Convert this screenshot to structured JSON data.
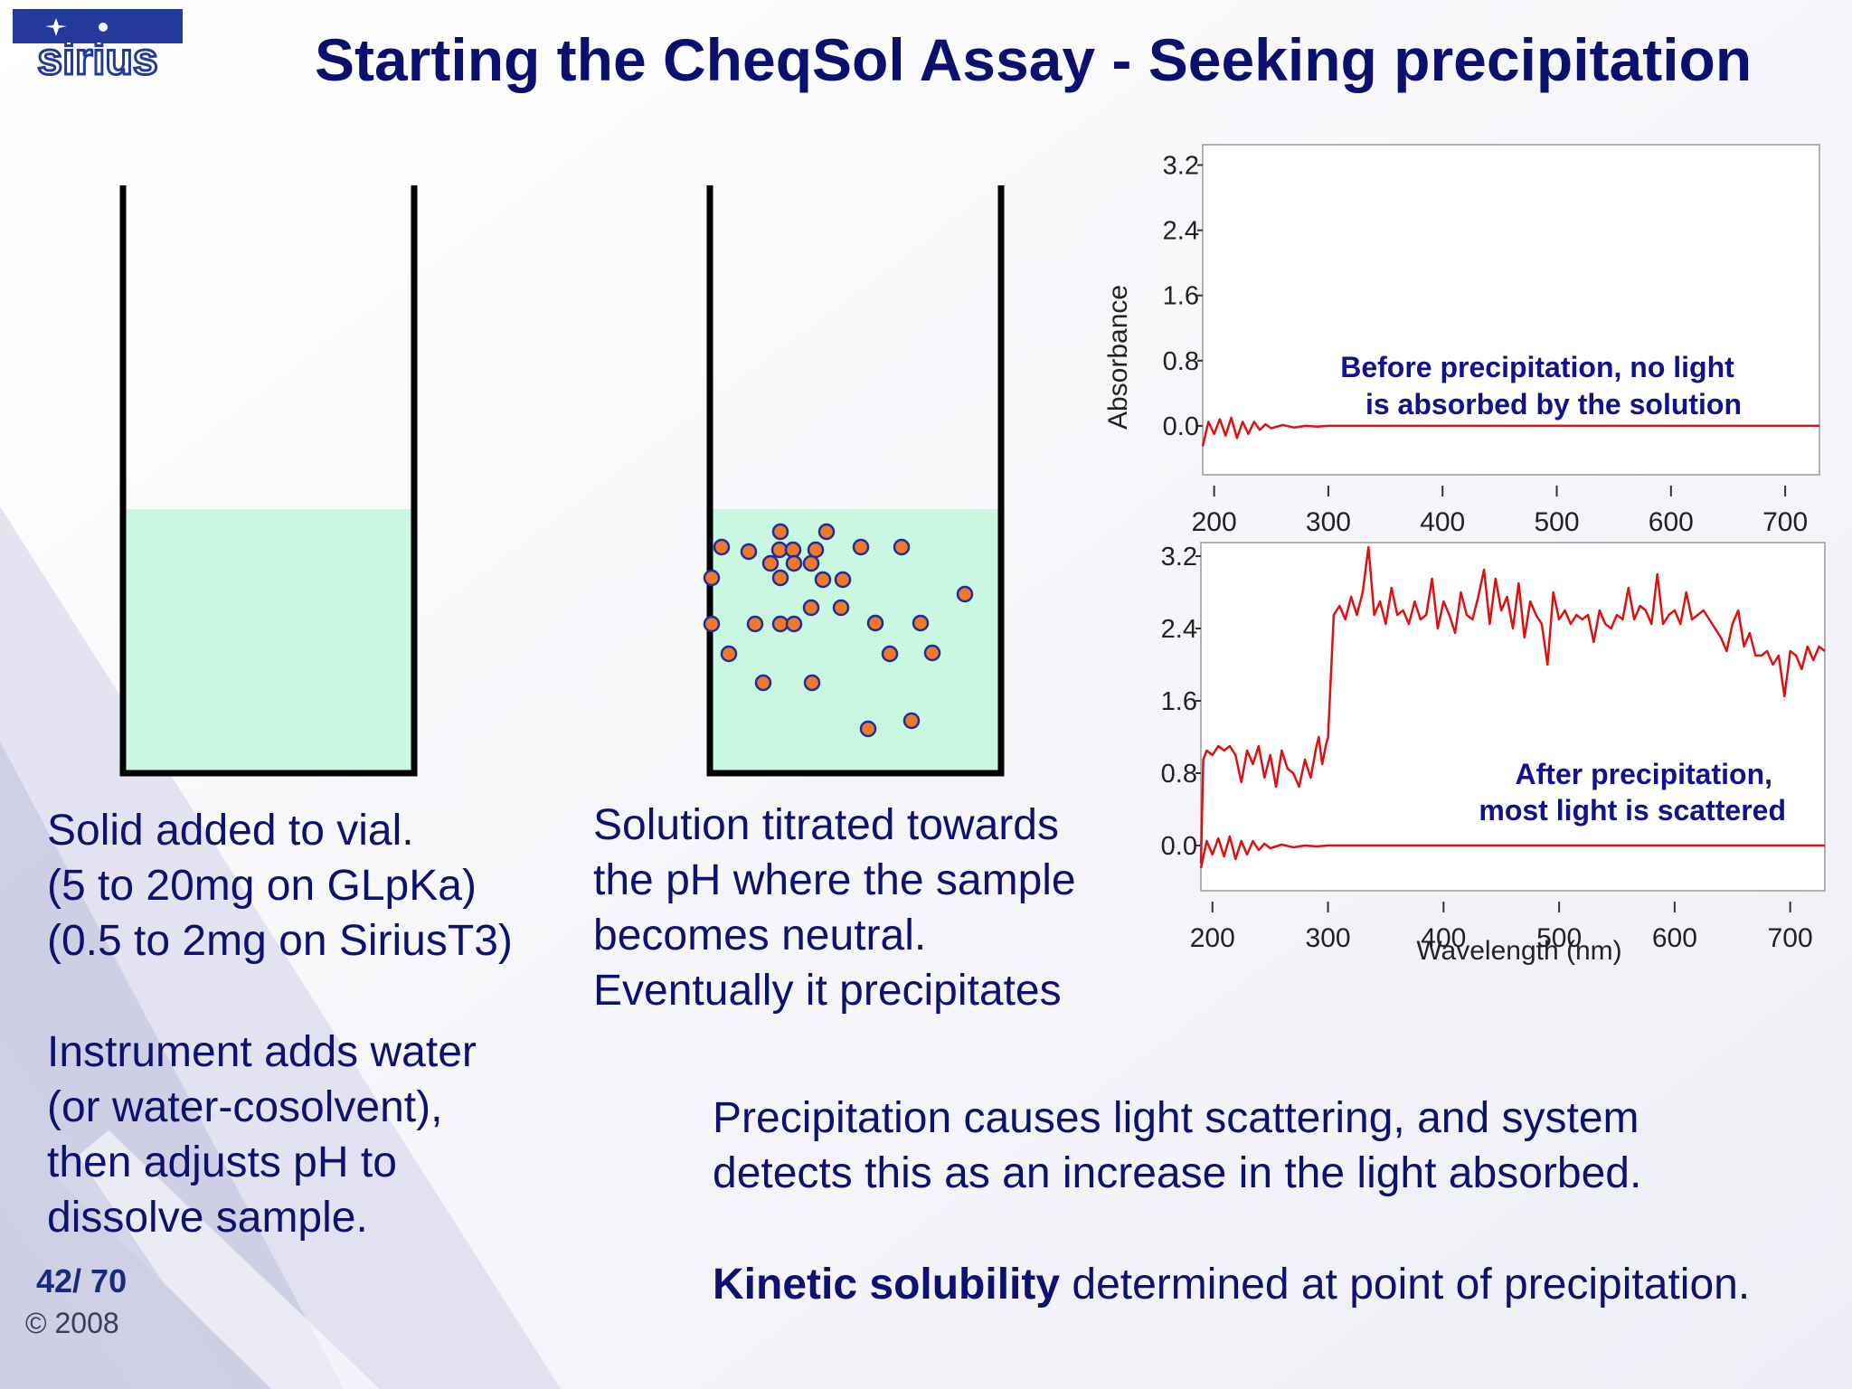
{
  "title": "Starting the CheqSol Assay - Seeking precipitation",
  "logo": {
    "text": "sirius",
    "icon": "star-icon"
  },
  "left_text": {
    "lines": [
      "Solid added to vial.",
      "(5 to 20mg on GLpKa)",
      "(0.5 to 2mg on SiriusT3)"
    ],
    "lines2": [
      "Instrument adds water",
      "(or water-cosolvent),",
      "then adjusts pH to",
      "dissolve sample."
    ]
  },
  "middle_text": {
    "lines": [
      "Solution titrated towards",
      "the pH where the sample",
      "becomes neutral.",
      "Eventually it precipitates"
    ]
  },
  "bottom_text": {
    "line1": "Precipitation causes light scattering, and system",
    "line2": "detects this as an increase in the light absorbed.",
    "kinetic_bold": "Kinetic solubility",
    "kinetic_rest": " determined at point of precipitation."
  },
  "footer": {
    "page": "42/ 70",
    "copyright": "© 2008"
  },
  "colors": {
    "liquid": "#c9f7e2",
    "particle_fill": "#f07828",
    "particle_stroke": "#1c2fa0",
    "trace": "#e01010",
    "title": "#0b0f6e"
  },
  "chart_data": [
    {
      "type": "line",
      "ylabel": "Absorbance",
      "xlabel": "",
      "xlim": [
        190,
        730
      ],
      "ylim": [
        -0.6,
        3.45
      ],
      "yticks": [
        "3.2",
        "2.4",
        "1.6",
        "0.8",
        "0.0"
      ],
      "ytick_values": [
        3.2,
        2.4,
        1.6,
        0.8,
        0.0
      ],
      "xticks": [
        "200",
        "300",
        "400",
        "500",
        "600",
        "700"
      ],
      "xtick_values": [
        200,
        300,
        400,
        500,
        600,
        700
      ],
      "annotation": [
        "Before precipitation, no light",
        "is absorbed by the solution"
      ],
      "series": [
        {
          "x": [
            190,
            195,
            200,
            205,
            210,
            215,
            220,
            225,
            230,
            235,
            240,
            245,
            250,
            260,
            270,
            280,
            290,
            300,
            350,
            400,
            450,
            500,
            550,
            600,
            650,
            700,
            730
          ],
          "y": [
            -0.25,
            0.05,
            -0.1,
            0.08,
            -0.12,
            0.1,
            -0.15,
            0.05,
            -0.1,
            0.05,
            -0.05,
            0.02,
            -0.03,
            0.01,
            -0.02,
            0.0,
            -0.01,
            0.0,
            0.0,
            0.0,
            0.0,
            0.0,
            0.0,
            0.0,
            0.0,
            0.0,
            0.0
          ]
        }
      ]
    },
    {
      "type": "line",
      "ylabel": "",
      "xlabel": "Wavelength (nm)",
      "xlim": [
        190,
        730
      ],
      "ylim": [
        -0.5,
        3.35
      ],
      "yticks": [
        "3.2",
        "2.4",
        "1.6",
        "0.8",
        "0.0"
      ],
      "ytick_values": [
        3.2,
        2.4,
        1.6,
        0.8,
        0.0
      ],
      "xticks": [
        "200",
        "300",
        "400",
        "500",
        "600",
        "700"
      ],
      "xtick_values": [
        200,
        300,
        400,
        500,
        600,
        700
      ],
      "annotation": [
        "After precipitation,",
        "most light is scattered"
      ],
      "series": [
        {
          "x": [
            190,
            195,
            200,
            205,
            210,
            215,
            220,
            225,
            230,
            235,
            240,
            245,
            250,
            260,
            270,
            280,
            290,
            300,
            350,
            400,
            450,
            500,
            550,
            600,
            650,
            700,
            730
          ],
          "y": [
            -0.25,
            0.05,
            -0.1,
            0.08,
            -0.12,
            0.1,
            -0.15,
            0.05,
            -0.1,
            0.05,
            -0.05,
            0.02,
            -0.03,
            0.01,
            -0.02,
            0.0,
            -0.01,
            0.0,
            0.0,
            0.0,
            0.0,
            0.0,
            0.0,
            0.0,
            0.0,
            0.0,
            0.0
          ]
        },
        {
          "x": [
            190,
            192,
            195,
            200,
            205,
            210,
            215,
            220,
            225,
            230,
            235,
            240,
            245,
            250,
            255,
            260,
            265,
            270,
            275,
            280,
            285,
            290,
            292,
            295,
            298,
            300,
            305,
            310,
            315,
            320,
            325,
            330,
            335,
            340,
            345,
            350,
            355,
            360,
            365,
            370,
            375,
            380,
            385,
            390,
            395,
            400,
            405,
            410,
            415,
            420,
            425,
            430,
            435,
            440,
            445,
            450,
            455,
            460,
            465,
            470,
            475,
            480,
            485,
            490,
            495,
            500,
            505,
            510,
            515,
            520,
            525,
            530,
            535,
            540,
            545,
            550,
            555,
            560,
            565,
            570,
            575,
            580,
            585,
            590,
            595,
            600,
            605,
            610,
            615,
            620,
            625,
            630,
            635,
            640,
            645,
            650,
            655,
            660,
            665,
            670,
            675,
            680,
            685,
            690,
            695,
            700,
            705,
            710,
            715,
            720,
            725,
            730
          ],
          "y": [
            -0.2,
            0.95,
            1.05,
            1.0,
            1.1,
            1.05,
            1.1,
            1.0,
            0.7,
            1.05,
            0.9,
            1.1,
            0.75,
            1.0,
            0.65,
            1.05,
            0.85,
            0.8,
            0.65,
            0.95,
            0.75,
            1.1,
            1.2,
            0.9,
            1.1,
            1.2,
            2.55,
            2.65,
            2.5,
            2.75,
            2.55,
            2.8,
            3.3,
            2.55,
            2.7,
            2.45,
            2.85,
            2.55,
            2.6,
            2.45,
            2.7,
            2.5,
            2.55,
            2.95,
            2.4,
            2.7,
            2.55,
            2.35,
            2.8,
            2.55,
            2.5,
            2.75,
            3.05,
            2.45,
            2.95,
            2.6,
            2.75,
            2.4,
            2.9,
            2.3,
            2.7,
            2.55,
            2.45,
            2.0,
            2.8,
            2.5,
            2.6,
            2.45,
            2.55,
            2.5,
            2.55,
            2.25,
            2.6,
            2.45,
            2.4,
            2.55,
            2.5,
            2.85,
            2.5,
            2.65,
            2.6,
            2.45,
            3.0,
            2.45,
            2.55,
            2.6,
            2.45,
            2.8,
            2.5,
            2.55,
            2.6,
            2.5,
            2.4,
            2.3,
            2.15,
            2.45,
            2.6,
            2.2,
            2.35,
            2.1,
            2.1,
            2.15,
            2.0,
            2.1,
            1.65,
            2.15,
            2.1,
            1.95,
            2.2,
            2.05,
            2.2,
            2.15
          ]
        }
      ]
    }
  ]
}
